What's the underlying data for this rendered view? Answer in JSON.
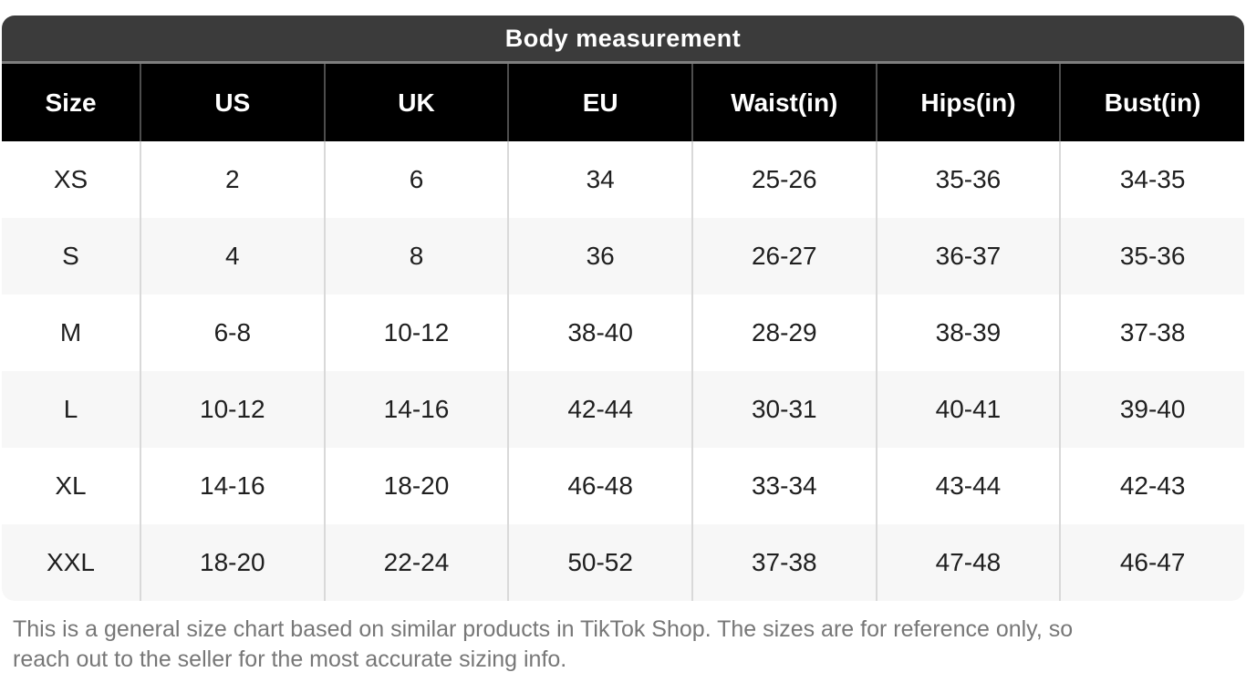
{
  "title": "Body measurement",
  "table": {
    "columns": [
      "Size",
      "US",
      "UK",
      "EU",
      "Waist(in)",
      "Hips(in)",
      "Bust(in)"
    ],
    "rows": [
      [
        "XS",
        "2",
        "6",
        "34",
        "25-26",
        "35-36",
        "34-35"
      ],
      [
        "S",
        "4",
        "8",
        "36",
        "26-27",
        "36-37",
        "35-36"
      ],
      [
        "M",
        "6-8",
        "10-12",
        "38-40",
        "28-29",
        "38-39",
        "37-38"
      ],
      [
        "L",
        "10-12",
        "14-16",
        "42-44",
        "30-31",
        "40-41",
        "39-40"
      ],
      [
        "XL",
        "14-16",
        "18-20",
        "46-48",
        "33-34",
        "43-44",
        "42-43"
      ],
      [
        "XXL",
        "18-20",
        "22-24",
        "50-52",
        "37-38",
        "47-48",
        "46-47"
      ]
    ]
  },
  "footer_note": "This is a general size chart based on similar products in TikTok Shop. The sizes are for reference only, so reach out to the seller for the most accurate sizing info.",
  "colors": {
    "title_bar_bg": "#3b3b3b",
    "title_bar_divider": "#7e7e7e",
    "header_bg": "#000000",
    "header_text": "#ffffff",
    "header_divider": "#4d4d4d",
    "row_bg": "#ffffff",
    "row_alt_bg": "#f7f7f7",
    "body_divider": "#d9d9d9",
    "body_text": "#1f1f1f",
    "note_text": "#777777"
  }
}
